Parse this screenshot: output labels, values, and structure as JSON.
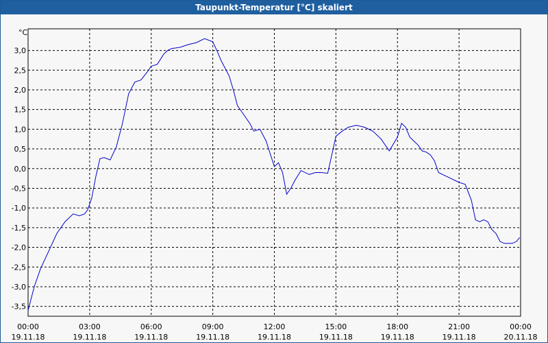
{
  "window": {
    "title": "Taupunkt-Temperatur [°C] skaliert"
  },
  "colors": {
    "line": "#0000cc",
    "grid": "#000000",
    "titlebar": "#1f5f9f"
  },
  "chart_data": {
    "type": "line",
    "title": "Taupunkt-Temperatur [°C] skaliert",
    "ylabel": "°C",
    "xlabel": "",
    "ylim": [
      -3.75,
      3.55
    ],
    "xlim_hours": [
      0,
      24
    ],
    "grid": true,
    "y_ticks": [
      "3,0",
      "2,5",
      "2,0",
      "1,5",
      "1,0",
      "0,5",
      "0,0",
      "-0,5",
      "-1,0",
      "-1,5",
      "-2,0",
      "-2,5",
      "-3,0",
      "-3,5"
    ],
    "y_tick_values": [
      3.0,
      2.5,
      2.0,
      1.5,
      1.0,
      0.5,
      0.0,
      -0.5,
      -1.0,
      -1.5,
      -2.0,
      -2.5,
      -3.0,
      -3.5
    ],
    "x_ticks": [
      {
        "time": "00:00",
        "date": "19.11.18"
      },
      {
        "time": "03:00",
        "date": "19.11.18"
      },
      {
        "time": "06:00",
        "date": "19.11.18"
      },
      {
        "time": "09:00",
        "date": "19.11.18"
      },
      {
        "time": "12:00",
        "date": "19.11.18"
      },
      {
        "time": "15:00",
        "date": "19.11.18"
      },
      {
        "time": "18:00",
        "date": "19.11.18"
      },
      {
        "time": "21:00",
        "date": "19.11.18"
      },
      {
        "time": "00:00",
        "date": "20.11.18"
      }
    ],
    "x_tick_hours": [
      0,
      3,
      6,
      9,
      12,
      15,
      18,
      21,
      24
    ],
    "series": [
      {
        "x": [
          0,
          0.3,
          0.6,
          1.0,
          1.4,
          1.8,
          2.2,
          2.5,
          2.75,
          2.9,
          3.1,
          3.3,
          3.5,
          3.7,
          4.0,
          4.3,
          4.6,
          4.9,
          5.2,
          5.5,
          5.8,
          6.0,
          6.3,
          6.6,
          6.8,
          7.0,
          7.4,
          7.8,
          8.2,
          8.6,
          9.0,
          9.2,
          9.4,
          9.6,
          9.8,
          10.0,
          10.2,
          10.4,
          10.6,
          10.8,
          11.0,
          11.3,
          11.6,
          12.0,
          12.2,
          12.4,
          12.6,
          12.8,
          13.0,
          13.3,
          13.7,
          14.0,
          14.3,
          14.6,
          15.0,
          15.3,
          15.6,
          16.0,
          16.4,
          16.8,
          17.2,
          17.6,
          18.0,
          18.2,
          18.4,
          18.6,
          18.8,
          19.0,
          19.2,
          19.4,
          19.6,
          19.8,
          20.0,
          20.2,
          20.4,
          20.6,
          20.8,
          21.0,
          21.3,
          21.6,
          21.8,
          22.0,
          22.2,
          22.4,
          22.6,
          22.8,
          23.0,
          23.2,
          23.4,
          23.6,
          23.8,
          23.95
        ],
        "y": [
          -3.6,
          -3.0,
          -2.55,
          -2.1,
          -1.65,
          -1.35,
          -1.15,
          -1.2,
          -1.15,
          -1.05,
          -0.75,
          -0.2,
          0.25,
          0.28,
          0.22,
          0.55,
          1.15,
          1.9,
          2.2,
          2.25,
          2.45,
          2.6,
          2.65,
          2.9,
          3.0,
          3.05,
          3.08,
          3.15,
          3.2,
          3.3,
          3.22,
          3.0,
          2.75,
          2.55,
          2.35,
          2.0,
          1.6,
          1.45,
          1.3,
          1.15,
          0.95,
          1.0,
          0.7,
          0.05,
          0.15,
          -0.1,
          -0.65,
          -0.5,
          -0.3,
          -0.05,
          -0.15,
          -0.1,
          -0.1,
          -0.12,
          0.82,
          0.95,
          1.05,
          1.1,
          1.05,
          0.95,
          0.75,
          0.45,
          0.8,
          1.15,
          1.05,
          0.8,
          0.7,
          0.6,
          0.45,
          0.42,
          0.35,
          0.2,
          -0.1,
          -0.15,
          -0.2,
          -0.25,
          -0.3,
          -0.35,
          -0.4,
          -0.8,
          -1.3,
          -1.35,
          -1.3,
          -1.35,
          -1.55,
          -1.65,
          -1.85,
          -1.9,
          -1.9,
          -1.9,
          -1.85,
          -1.75
        ]
      }
    ]
  }
}
